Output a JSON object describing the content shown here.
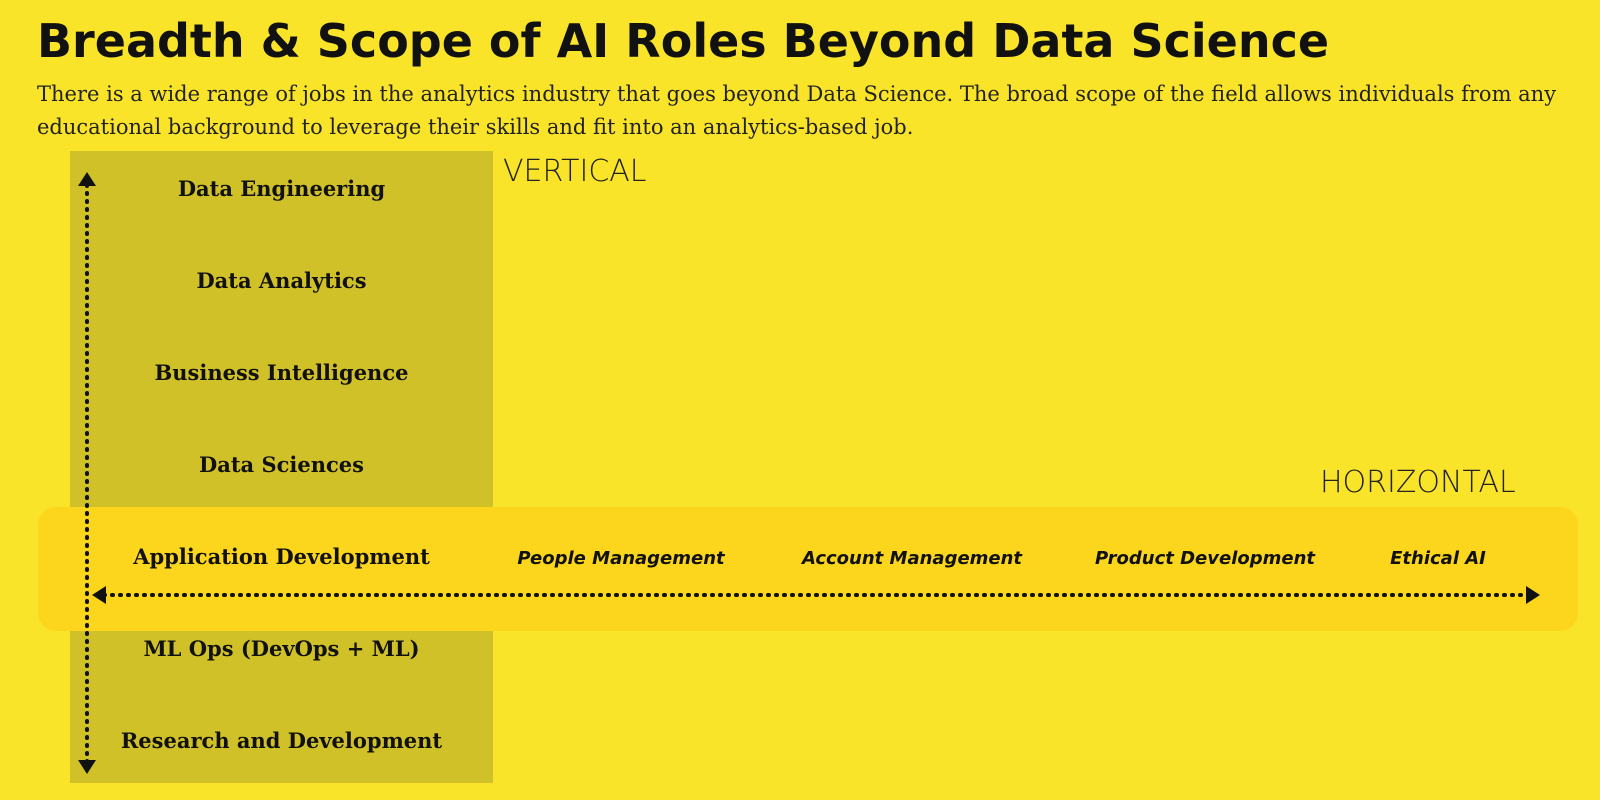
{
  "header": {
    "title": "Breadth & Scope of AI Roles Beyond Data Science",
    "description": "There is a wide range of jobs in the analytics industry that goes beyond Data Science. The broad scope of the field allows individuals from any educational background to leverage their skills and fit into an analytics-based job."
  },
  "vertical": {
    "label": "VERTICAL",
    "roles": [
      "Data Engineering",
      "Data Analytics",
      "Business Intelligence",
      "Data Sciences",
      "Application Development",
      "ML Ops (DevOps + ML)",
      "Research and Development"
    ]
  },
  "horizontal": {
    "label": "HORIZONTAL",
    "roles": [
      "People Management",
      "Account Management",
      "Product Development",
      "Ethical AI"
    ]
  }
}
